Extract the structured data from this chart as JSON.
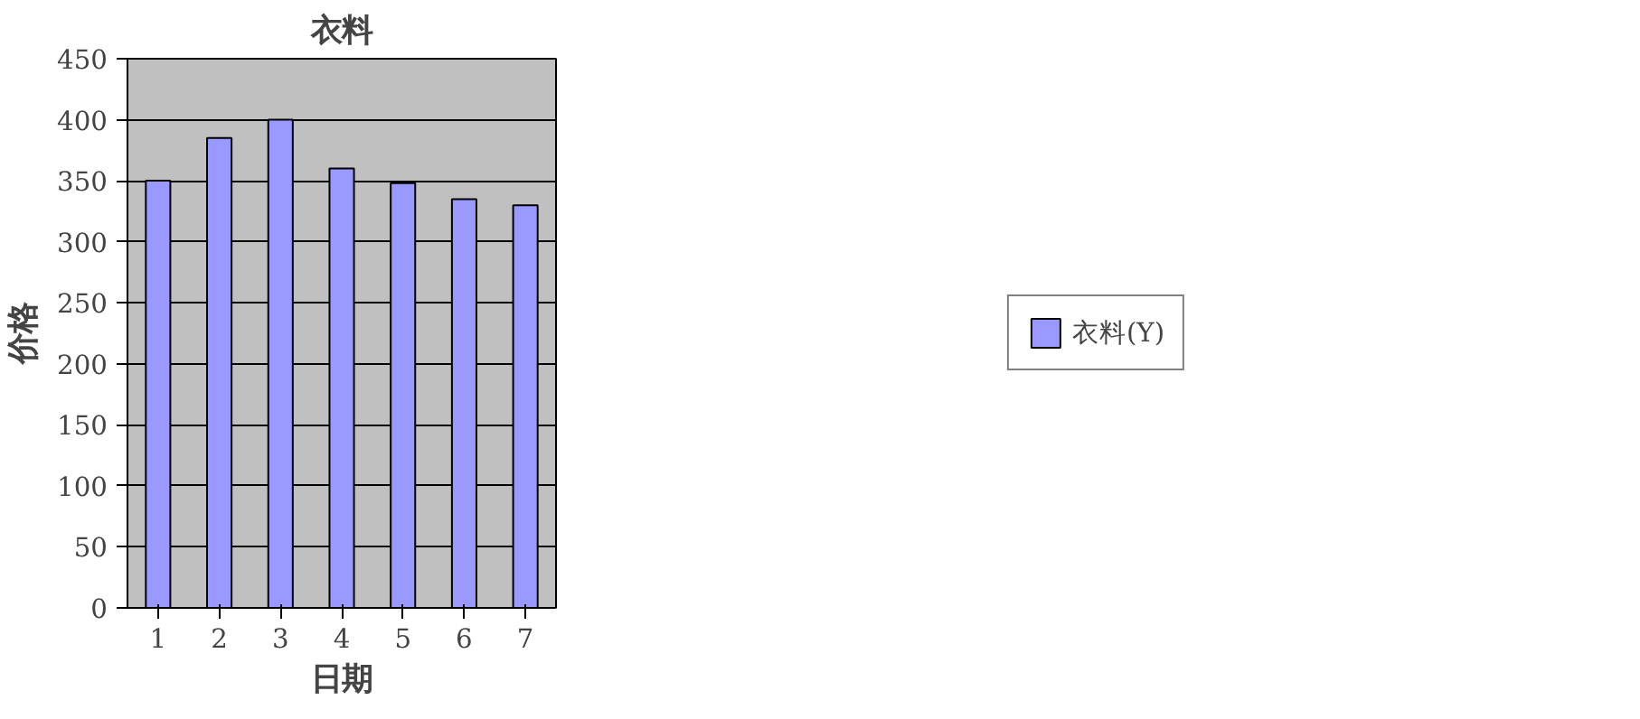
{
  "chart_data": {
    "type": "bar",
    "title": "衣料",
    "xlabel": "日期",
    "ylabel": "价格",
    "categories": [
      "1",
      "2",
      "3",
      "4",
      "5",
      "6",
      "7"
    ],
    "series": [
      {
        "name": "衣料(Y)",
        "color": "#9999ff",
        "values": [
          350,
          385,
          400,
          360,
          348,
          335,
          330
        ]
      }
    ],
    "ylim": [
      0,
      450
    ],
    "yticks": [
      0,
      50,
      100,
      150,
      200,
      250,
      300,
      350,
      400,
      450
    ],
    "grid": "y",
    "legend": "right"
  }
}
